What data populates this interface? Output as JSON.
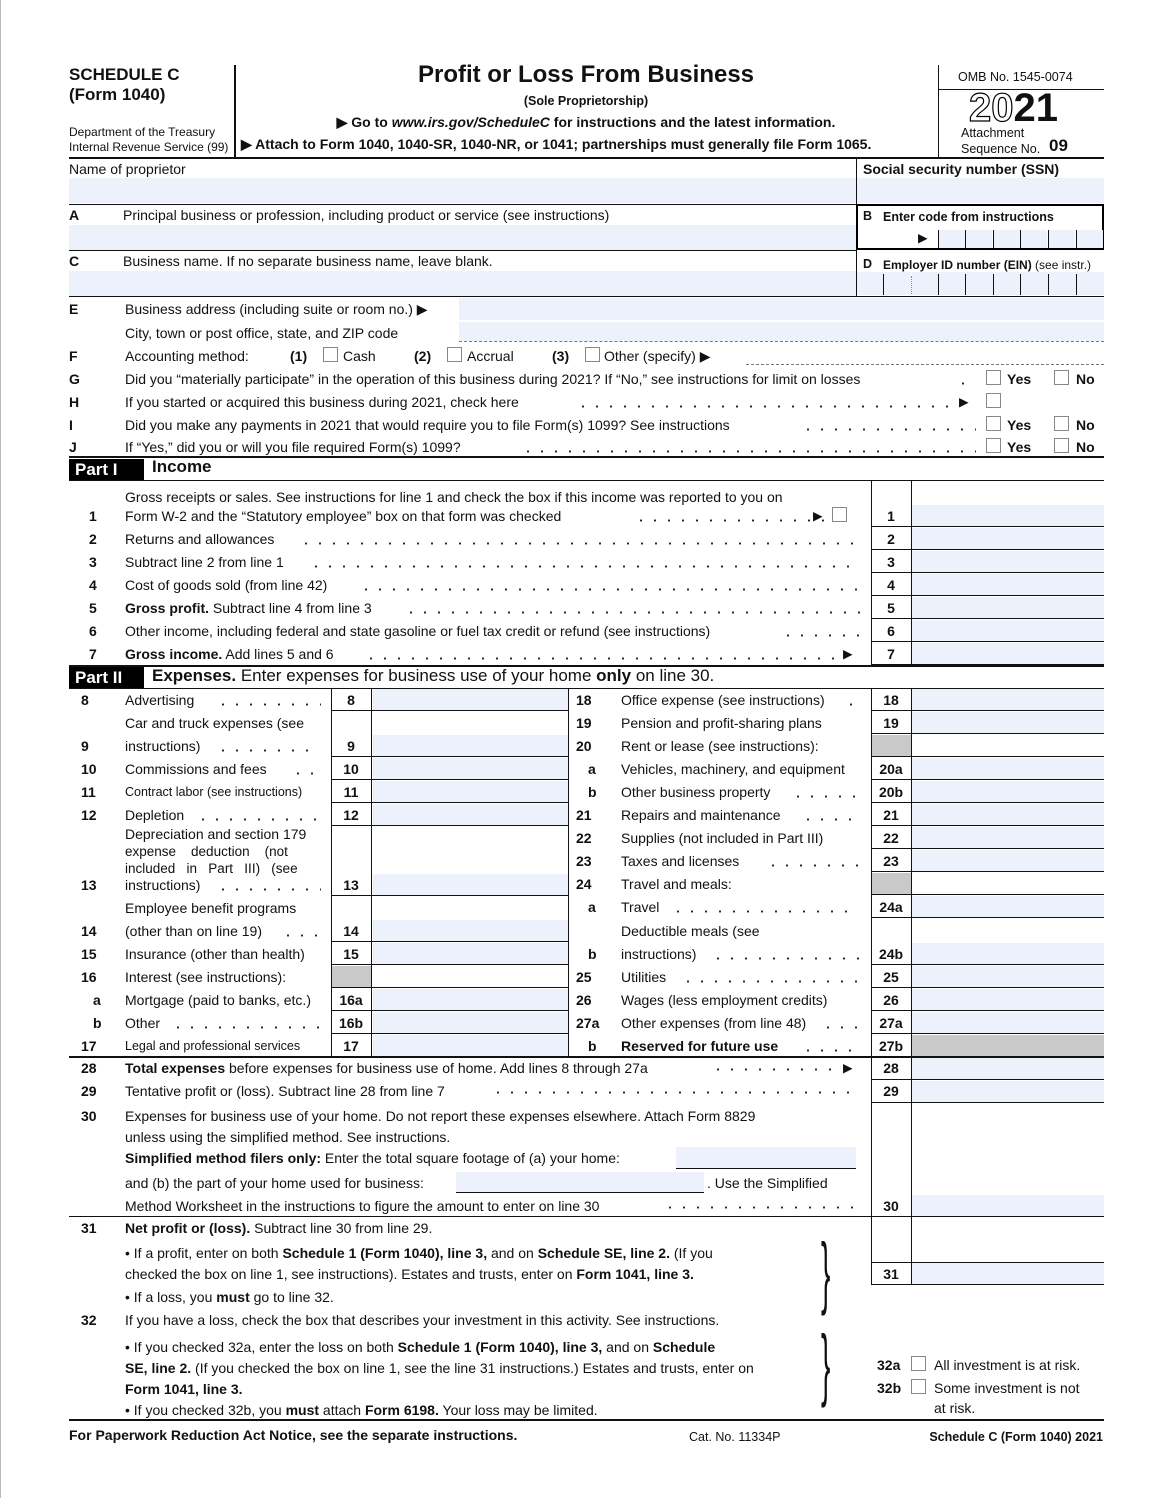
{
  "header": {
    "form_title": "SCHEDULE C",
    "form_sub": "(Form 1040)",
    "dept1": "Department of the Treasury",
    "dept2": "Internal Revenue Service (99)",
    "title": "Profit or Loss From Business",
    "subtitle": "(Sole Proprietorship)",
    "goto": [
      "▶ Go to ",
      "www.irs.gov/ScheduleC",
      " for instructions and the latest information."
    ],
    "attach": "▶ Attach to Form 1040, 1040-SR, 1040-NR, or 1041; partnerships must generally file Form 1065.",
    "omb": "OMB No. 1545-0074",
    "year_outline": "20",
    "year_bold": "21",
    "attachment": "Attachment",
    "seq_label": "Sequence No. ",
    "seq_num": "09"
  },
  "ident": {
    "name_label": "Name of proprietor",
    "ssn_label": "Social security number (SSN)",
    "a_letter": "A",
    "a_label": "Principal business or profession, including product or service (see instructions)",
    "b_letter": "B",
    "b_label": "Enter code from instructions",
    "b_arrow": "▶",
    "c_letter": "C",
    "c_label": "Business name. If no separate business name, leave blank.",
    "d_letter": "D",
    "d_label": [
      "Employer ID number (EIN)",
      " (see instr.)"
    ],
    "e_letter": "E",
    "e_label": "Business address (including suite or room no.) ▶",
    "e_city": "City, town or post office, state, and ZIP code",
    "f_letter": "F",
    "f_label": "Accounting method:",
    "f_opt1_num": "(1)",
    "f_opt1": "Cash",
    "f_opt2_num": "(2)",
    "f_opt2": "Accrual",
    "f_opt3_num": "(3)",
    "f_opt3": "Other (specify) ▶",
    "g_letter": "G",
    "g_label": "Did you “materially participate” in the operation of this business during 2021? If “No,” see instructions for limit on losses",
    "h_letter": "H",
    "h_label": "If you started or acquired this business during 2021, check here",
    "h_arrow": "▶",
    "i_letter": "I",
    "i_label": "Did you make any payments in 2021 that would require you to file Form(s) 1099? See instructions",
    "j_letter": "J",
    "j_label": "If “Yes,” did you or will you file required Form(s) 1099?",
    "yes": "Yes",
    "no": "No"
  },
  "part1": {
    "tag": "Part I",
    "title": "Income",
    "lines": [
      {
        "num": "1",
        "label": [
          [
            "Gross receipts or sales. See instructions for line 1 and check the box if this income was reported to you on"
          ],
          [
            "Form W-2 and the “Statutory employee” box on that form was checked"
          ]
        ],
        "arrow": "▶",
        "box": "1"
      },
      {
        "num": "2",
        "label": [
          [
            "Returns and allowances"
          ]
        ],
        "box": "2"
      },
      {
        "num": "3",
        "label": [
          [
            "Subtract line 2 from line 1"
          ]
        ],
        "box": "3"
      },
      {
        "num": "4",
        "label": [
          [
            "Cost of goods sold (from line 42)"
          ]
        ],
        "box": "4"
      },
      {
        "num": "5",
        "label": [
          [
            "Gross profit.",
            " Subtract line 4 from line 3"
          ]
        ],
        "box": "5"
      },
      {
        "num": "6",
        "label": [
          [
            "Other income, including federal and state gasoline or fuel tax credit or refund (see instructions)"
          ]
        ],
        "box": "6"
      },
      {
        "num": "7",
        "label": [
          [
            "Gross income.",
            " Add lines 5 and 6"
          ]
        ],
        "arrow": "▶",
        "box": "7"
      }
    ]
  },
  "part2": {
    "tag": "Part II",
    "title": [
      "Expenses.",
      " Enter expenses for business use of your home ",
      "only",
      " on line 30."
    ],
    "left": [
      {
        "num": "8",
        "label": [
          "Advertising"
        ],
        "box": "8"
      },
      {
        "num": "9",
        "label": [
          "Car and truck expenses (see",
          "instructions)"
        ],
        "box": "9"
      },
      {
        "num": "10",
        "label": [
          "Commissions and fees"
        ],
        "box": "10"
      },
      {
        "num": "11",
        "label": [
          "Contract labor (see instructions)"
        ],
        "box": "11"
      },
      {
        "num": "12",
        "label": [
          "Depletion"
        ],
        "box": "12"
      },
      {
        "num": "13",
        "label": [
          "Depreciation and section 179",
          "expense    deduction    (not",
          "included   in   Part   III)   (see",
          "instructions)"
        ],
        "box": "13"
      },
      {
        "num": "14",
        "label": [
          "Employee benefit programs",
          "(other than on line 19)"
        ],
        "box": "14"
      },
      {
        "num": "15",
        "label": [
          "Insurance (other than health)"
        ],
        "box": "15"
      },
      {
        "num": "16",
        "label": [
          "Interest (see instructions):"
        ],
        "box": ""
      },
      {
        "num": "a",
        "label": [
          "Mortgage (paid to banks, etc.)"
        ],
        "box": "16a"
      },
      {
        "num": "b",
        "label": [
          "Other"
        ],
        "box": "16b"
      },
      {
        "num": "17",
        "label": [
          "Legal and professional services"
        ],
        "box": "17"
      }
    ],
    "right": [
      {
        "num": "18",
        "label": [
          "Office expense (see instructions)"
        ],
        "box": "18"
      },
      {
        "num": "19",
        "label": [
          "Pension and profit-sharing plans"
        ],
        "box": "19"
      },
      {
        "num": "20",
        "label": [
          "Rent or lease (see instructions):"
        ],
        "box": ""
      },
      {
        "num": "a",
        "label": [
          "Vehicles, machinery, and equipment"
        ],
        "box": "20a"
      },
      {
        "num": "b",
        "label": [
          "Other business property"
        ],
        "box": "20b"
      },
      {
        "num": "21",
        "label": [
          "Repairs and maintenance"
        ],
        "box": "21"
      },
      {
        "num": "22",
        "label": [
          "Supplies (not included in Part III)"
        ],
        "box": "22"
      },
      {
        "num": "23",
        "label": [
          "Taxes and licenses"
        ],
        "box": "23"
      },
      {
        "num": "24",
        "label": [
          "Travel and meals:"
        ],
        "box": ""
      },
      {
        "num": "a",
        "label": [
          "Travel"
        ],
        "box": "24a"
      },
      {
        "num": "b",
        "label": [
          "Deductible meals (see",
          "instructions)"
        ],
        "box": "24b"
      },
      {
        "num": "25",
        "label": [
          "Utilities"
        ],
        "box": "25"
      },
      {
        "num": "26",
        "label": [
          "Wages (less employment credits)"
        ],
        "box": "26"
      },
      {
        "num": "27a",
        "label": [
          "Other expenses (from line 48)"
        ],
        "box": "27a"
      },
      {
        "num": "b",
        "label": [
          "Reserved for future use"
        ],
        "box": "27b"
      }
    ]
  },
  "totals": {
    "l28_num": "28",
    "l28": [
      "Total expenses",
      " before expenses for business use of home. Add lines 8 through 27a"
    ],
    "l28_arrow": "▶",
    "l28_box": "28",
    "l29_num": "29",
    "l29": "Tentative profit or (loss). Subtract line 28 from line 7",
    "l29_box": "29",
    "l30_num": "30",
    "l30_a": "Expenses for business use of your home. Do not report these expenses elsewhere. Attach Form 8829",
    "l30_b": "unless using the simplified method. See instructions.",
    "l30_c": [
      "Simplified method filers only:",
      " Enter the total square footage of (a) your home:"
    ],
    "l30_d": "and (b) the part of your home used for business:",
    "l30_e": ". Use the Simplified",
    "l30_f": "Method Worksheet in the instructions to figure the amount to enter on line 30",
    "l30_box": "30",
    "l31_num": "31",
    "l31_a": [
      "Net profit or (loss).",
      " Subtract line 30 from line 29."
    ],
    "l31_b": [
      "• If a profit, enter on both ",
      "Schedule 1 (Form 1040), line 3,",
      " and on ",
      "Schedule SE, line 2.",
      " (If you"
    ],
    "l31_c": [
      "checked the box on line 1, see instructions). Estates and trusts, enter on ",
      "Form 1041, line 3."
    ],
    "l31_d": [
      "• If a loss, you ",
      "must",
      "  go to line 32."
    ],
    "l31_box": "31",
    "l32_num": "32",
    "l32_a": "If you have a loss, check the box that describes your investment in this activity. See instructions.",
    "l32_b": [
      "• If you checked 32a, enter the loss on both ",
      "Schedule 1 (Form 1040), line 3,",
      " and on ",
      "Schedule"
    ],
    "l32_c": [
      "SE, line 2.",
      " (If you checked the box on line 1, see the line 31 instructions.) Estates and trusts, enter on"
    ],
    "l32_d": [
      "Form 1041, line 3."
    ],
    "l32_e": [
      "• If you checked 32b, you ",
      "must",
      " attach ",
      "Form 6198.",
      " Your loss may be limited."
    ],
    "l32a_box": "32a",
    "l32a_text": "All investment is at risk.",
    "l32b_box": "32b",
    "l32b_text1": "Some investment is not",
    "l32b_text2": "at risk."
  },
  "footer": {
    "notice": "For Paperwork Reduction Act Notice, see the separate instructions.",
    "cat": "Cat. No. 11334P",
    "form": "Schedule C (Form 1040) 2021"
  },
  "colors": {
    "field_fill": "#edf1fc",
    "shaded": "#c9c9c9"
  }
}
